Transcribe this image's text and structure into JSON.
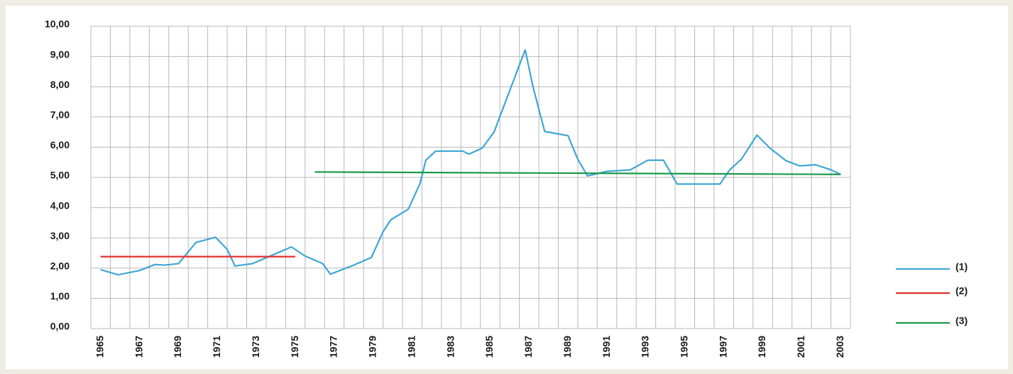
{
  "chart_data": {
    "type": "line",
    "xlim": [
      1964.5,
      2003.5
    ],
    "xticks": [
      1965,
      1967,
      1969,
      1971,
      1973,
      1975,
      1977,
      1979,
      1981,
      1983,
      1985,
      1987,
      1989,
      1991,
      1993,
      1995,
      1997,
      1999,
      2001,
      2003
    ],
    "xgrid": [
      1964.5,
      1965.5,
      1966.5,
      1967.5,
      1968.5,
      1969.5,
      1970.5,
      1971.5,
      1972.5,
      1973.5,
      1974.5,
      1975.5,
      1976.5,
      1977.5,
      1978.5,
      1979.5,
      1980.5,
      1981.5,
      1982.5,
      1983.5,
      1984.5,
      1985.5,
      1986.5,
      1987.5,
      1988.5,
      1989.5,
      1990.5,
      1991.5,
      1992.5,
      1993.5,
      1994.5,
      1995.5,
      1996.5,
      1997.5,
      1998.5,
      1999.5,
      2000.5,
      2001.5,
      2002.5,
      2003.5
    ],
    "ylim": [
      0,
      10
    ],
    "yticks": [
      {
        "value": 0,
        "label": "0,00"
      },
      {
        "value": 1,
        "label": "1,00"
      },
      {
        "value": 2,
        "label": "2,00"
      },
      {
        "value": 3,
        "label": "3,00"
      },
      {
        "value": 4,
        "label": "4,00"
      },
      {
        "value": 5,
        "label": "5,00"
      },
      {
        "value": 6,
        "label": "6,00"
      },
      {
        "value": 7,
        "label": "7,00"
      },
      {
        "value": 8,
        "label": "8,00"
      },
      {
        "value": 9,
        "label": "9,00"
      },
      {
        "value": 10,
        "label": "10,00"
      }
    ],
    "grid": true,
    "legend": "right",
    "series": [
      {
        "name": "(1)",
        "color": "#3ea6d6",
        "x": [
          1965.0,
          1965.9,
          1967.0,
          1967.8,
          1968.3,
          1969.0,
          1969.9,
          1970.9,
          1971.5,
          1971.9,
          1972.8,
          1974.8,
          1975.5,
          1976.4,
          1976.8,
          1978.0,
          1978.9,
          1979.5,
          1979.9,
          1980.8,
          1981.4,
          1981.7,
          1982.2,
          1983.6,
          1983.9,
          1984.6,
          1985.2,
          1986.8,
          1987.2,
          1987.8,
          1989.0,
          1989.5,
          1990.0,
          1991.0,
          1992.2,
          1993.1,
          1993.9,
          1994.6,
          1996.8,
          1997.3,
          1997.9,
          1998.7,
          1999.4,
          2000.2,
          2000.9,
          2001.7,
          2002.5,
          2003.0
        ],
        "values": [
          1.95,
          1.78,
          1.92,
          2.12,
          2.1,
          2.15,
          2.85,
          3.02,
          2.62,
          2.07,
          2.15,
          2.7,
          2.4,
          2.15,
          1.8,
          2.1,
          2.35,
          3.2,
          3.6,
          3.95,
          4.8,
          5.57,
          5.87,
          5.87,
          5.77,
          5.97,
          6.5,
          9.22,
          8.0,
          6.52,
          6.38,
          5.6,
          5.05,
          5.2,
          5.25,
          5.57,
          5.57,
          4.78,
          4.78,
          5.25,
          5.6,
          6.4,
          5.95,
          5.55,
          5.38,
          5.42,
          5.25,
          5.1
        ]
      },
      {
        "name": "(2)",
        "color": "#e0312c",
        "x": [
          1965,
          1975
        ],
        "values": [
          2.38,
          2.38
        ]
      },
      {
        "name": "(3)",
        "color": "#1a9a4a",
        "x": [
          1976,
          2003
        ],
        "values": [
          5.18,
          5.1
        ]
      }
    ]
  }
}
